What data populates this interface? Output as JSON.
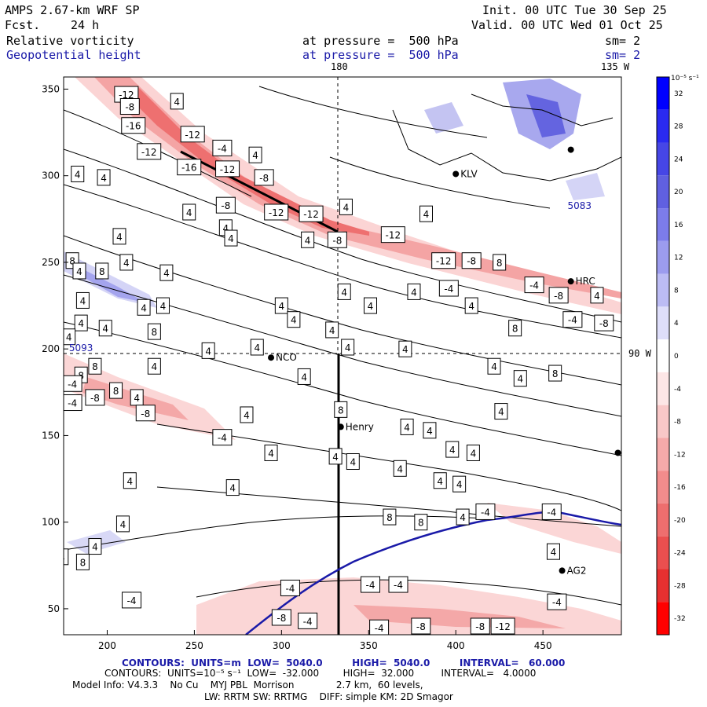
{
  "header": {
    "model": "AMPS 2.67-km WRF SP",
    "fcst_label": "Fcst.",
    "fcst_value": "24 h",
    "init": "Init. 00 UTC Tue 30 Sep 25",
    "valid": "Valid. 00 UTC Wed 01 Oct 25",
    "field1_name": "Relative vorticity",
    "field1_level": "at pressure =  500 hPa",
    "field1_sm": "sm= 2",
    "field2_name": "Geopotential height",
    "field2_level": "at pressure =  500 hPa",
    "field2_sm": "sm= 2",
    "top_left_marker": "180",
    "top_right_marker": "135 W",
    "right_marker": "90 W"
  },
  "axes": {
    "x_ticks": [
      "200",
      "250",
      "300",
      "350",
      "400",
      "450"
    ],
    "x_values": [
      200,
      250,
      300,
      350,
      400,
      450
    ],
    "x_range": [
      175,
      495
    ],
    "y_ticks": [
      "50",
      "100",
      "150",
      "200",
      "250",
      "300",
      "350"
    ],
    "y_values": [
      50,
      100,
      150,
      200,
      250,
      300,
      350
    ],
    "y_range": [
      35,
      357
    ]
  },
  "colorbar": {
    "unit": "10⁻⁵ s⁻¹",
    "labels": [
      "32",
      "28",
      "24",
      "20",
      "16",
      "12",
      "8",
      "4",
      "0",
      "-4",
      "-8",
      "-12",
      "-16",
      "-20",
      "-24",
      "-28",
      "-32"
    ],
    "colors": [
      "#0000ff",
      "#2a2af0",
      "#4646e6",
      "#6060e0",
      "#7c7cea",
      "#9c9cee",
      "#bcbcf4",
      "#dedefa",
      "#ffffff",
      "#fde6e6",
      "#f9c8c8",
      "#f6aaaa",
      "#f28c8c",
      "#ee6e6e",
      "#ea4f4f",
      "#e63030",
      "#ff0000"
    ]
  },
  "stations": [
    {
      "name": "KLV",
      "x": 400,
      "y": 301
    },
    {
      "name": "HRC",
      "x": 466,
      "y": 239
    },
    {
      "name": "NCO",
      "x": 294,
      "y": 195
    },
    {
      "name": "Henry",
      "x": 334,
      "y": 155
    },
    {
      "name": "AG2",
      "x": 461,
      "y": 72
    },
    {
      "name": "",
      "x": 466,
      "y": 315
    },
    {
      "name": "",
      "x": 493,
      "y": 140
    }
  ],
  "height_labels": [
    {
      "text": "5093",
      "x": 185,
      "y": 201
    },
    {
      "text": "5083",
      "x": 471,
      "y": 283
    }
  ],
  "contour_labels": [
    {
      "text": "-12",
      "x": 211,
      "y": 347
    },
    {
      "text": "-8",
      "x": 213,
      "y": 340
    },
    {
      "text": "4",
      "x": 240,
      "y": 343
    },
    {
      "text": "-16",
      "x": 215,
      "y": 329
    },
    {
      "text": "-12",
      "x": 224,
      "y": 314
    },
    {
      "text": "-12",
      "x": 249,
      "y": 324
    },
    {
      "text": "-4",
      "x": 266,
      "y": 316
    },
    {
      "text": "4",
      "x": 285,
      "y": 312
    },
    {
      "text": "-16",
      "x": 247,
      "y": 305
    },
    {
      "text": "-12",
      "x": 269,
      "y": 304
    },
    {
      "text": "-8",
      "x": 290,
      "y": 299
    },
    {
      "text": "4",
      "x": 183,
      "y": 301
    },
    {
      "text": "4",
      "x": 198,
      "y": 299
    },
    {
      "text": "-8",
      "x": 268,
      "y": 283
    },
    {
      "text": "-12",
      "x": 297,
      "y": 279
    },
    {
      "text": "-12",
      "x": 317,
      "y": 278
    },
    {
      "text": "4",
      "x": 337,
      "y": 282
    },
    {
      "text": "4",
      "x": 247,
      "y": 279
    },
    {
      "text": "4",
      "x": 383,
      "y": 278
    },
    {
      "text": "4",
      "x": 268,
      "y": 270
    },
    {
      "text": "-12",
      "x": 364,
      "y": 266
    },
    {
      "text": "4",
      "x": 207,
      "y": 265
    },
    {
      "text": "4",
      "x": 271,
      "y": 264
    },
    {
      "text": "4",
      "x": 315,
      "y": 263
    },
    {
      "text": "-8",
      "x": 332,
      "y": 263
    },
    {
      "text": "8",
      "x": 180,
      "y": 251
    },
    {
      "text": "-12",
      "x": 393,
      "y": 251
    },
    {
      "text": "-8",
      "x": 409,
      "y": 251
    },
    {
      "text": "8",
      "x": 425,
      "y": 250
    },
    {
      "text": "4",
      "x": 211,
      "y": 250
    },
    {
      "text": "4",
      "x": 184,
      "y": 245
    },
    {
      "text": "8",
      "x": 197,
      "y": 245
    },
    {
      "text": "4",
      "x": 234,
      "y": 244
    },
    {
      "text": "-4",
      "x": 445,
      "y": 237
    },
    {
      "text": "4",
      "x": 336,
      "y": 233
    },
    {
      "text": "4",
      "x": 376,
      "y": 233
    },
    {
      "text": "-4",
      "x": 396,
      "y": 235
    },
    {
      "text": "-8",
      "x": 459,
      "y": 231
    },
    {
      "text": "4",
      "x": 481,
      "y": 231
    },
    {
      "text": "4",
      "x": 186,
      "y": 228
    },
    {
      "text": "4",
      "x": 221,
      "y": 224
    },
    {
      "text": "4",
      "x": 232,
      "y": 225
    },
    {
      "text": "4",
      "x": 300,
      "y": 225
    },
    {
      "text": "4",
      "x": 351,
      "y": 225
    },
    {
      "text": "4",
      "x": 409,
      "y": 225
    },
    {
      "text": "4",
      "x": 307,
      "y": 217
    },
    {
      "text": "-4",
      "x": 467,
      "y": 217
    },
    {
      "text": "-8",
      "x": 485,
      "y": 215
    },
    {
      "text": "4",
      "x": 185,
      "y": 215
    },
    {
      "text": "4",
      "x": 199,
      "y": 212
    },
    {
      "text": "8",
      "x": 227,
      "y": 210
    },
    {
      "text": "4",
      "x": 329,
      "y": 211
    },
    {
      "text": "8",
      "x": 434,
      "y": 212
    },
    {
      "text": "4",
      "x": 178,
      "y": 207
    },
    {
      "text": "4",
      "x": 286,
      "y": 201
    },
    {
      "text": "4",
      "x": 258,
      "y": 199
    },
    {
      "text": "4",
      "x": 338,
      "y": 201
    },
    {
      "text": "4",
      "x": 371,
      "y": 200
    },
    {
      "text": "8",
      "x": 193,
      "y": 190
    },
    {
      "text": "4",
      "x": 227,
      "y": 190
    },
    {
      "text": "4",
      "x": 422,
      "y": 190
    },
    {
      "text": "8",
      "x": 185,
      "y": 185
    },
    {
      "text": "8",
      "x": 457,
      "y": 186
    },
    {
      "text": "4",
      "x": 313,
      "y": 184
    },
    {
      "text": "4",
      "x": 437,
      "y": 183
    },
    {
      "text": "-4",
      "x": 180,
      "y": 180
    },
    {
      "text": "8",
      "x": 205,
      "y": 176
    },
    {
      "text": "4",
      "x": 217,
      "y": 172
    },
    {
      "text": "-8",
      "x": 193,
      "y": 172
    },
    {
      "text": "-4",
      "x": 180,
      "y": 169
    },
    {
      "text": "8",
      "x": 334,
      "y": 165
    },
    {
      "text": "-8",
      "x": 222,
      "y": 163
    },
    {
      "text": "4",
      "x": 280,
      "y": 162
    },
    {
      "text": "4",
      "x": 426,
      "y": 164
    },
    {
      "text": "4",
      "x": 372,
      "y": 155
    },
    {
      "text": "4",
      "x": 385,
      "y": 153
    },
    {
      "text": "-4",
      "x": 266,
      "y": 149
    },
    {
      "text": "4",
      "x": 398,
      "y": 142
    },
    {
      "text": "4",
      "x": 410,
      "y": 140
    },
    {
      "text": "4",
      "x": 294,
      "y": 140
    },
    {
      "text": "4",
      "x": 331,
      "y": 138
    },
    {
      "text": "4",
      "x": 341,
      "y": 135
    },
    {
      "text": "4",
      "x": 368,
      "y": 131
    },
    {
      "text": "4",
      "x": 391,
      "y": 124
    },
    {
      "text": "4",
      "x": 402,
      "y": 122
    },
    {
      "text": "4",
      "x": 213,
      "y": 124
    },
    {
      "text": "4",
      "x": 272,
      "y": 120
    },
    {
      "text": "-4",
      "x": 417,
      "y": 106
    },
    {
      "text": "-4",
      "x": 455,
      "y": 106
    },
    {
      "text": "4",
      "x": 404,
      "y": 103
    },
    {
      "text": "8",
      "x": 362,
      "y": 103
    },
    {
      "text": "8",
      "x": 380,
      "y": 100
    },
    {
      "text": "4",
      "x": 209,
      "y": 99
    },
    {
      "text": "4",
      "x": 193,
      "y": 86
    },
    {
      "text": "4",
      "x": 174,
      "y": 80
    },
    {
      "text": "4",
      "x": 456,
      "y": 83
    },
    {
      "text": "8",
      "x": 186,
      "y": 77
    },
    {
      "text": "-4",
      "x": 305,
      "y": 62
    },
    {
      "text": "-4",
      "x": 351,
      "y": 64
    },
    {
      "text": "-4",
      "x": 367,
      "y": 64
    },
    {
      "text": "-4",
      "x": 214,
      "y": 55
    },
    {
      "text": "-4",
      "x": 458,
      "y": 54
    },
    {
      "text": "-8",
      "x": 300,
      "y": 45
    },
    {
      "text": "-4",
      "x": 315,
      "y": 43
    },
    {
      "text": "-4",
      "x": 356,
      "y": 39
    },
    {
      "text": "-8",
      "x": 380,
      "y": 40
    },
    {
      "text": "-8",
      "x": 414,
      "y": 40
    },
    {
      "text": "-12",
      "x": 427,
      "y": 40
    }
  ],
  "footer": {
    "contours_height": "CONTOURS:  UNITS=m  LOW=  5040.0         HIGH=  5040.0         INTERVAL=   60.000",
    "contours_vort": "CONTOURS:  UNITS=10⁻⁵ s⁻¹  LOW=  -32.000        HIGH=  32.000         INTERVAL=   4.0000",
    "model_info": "Model Info: V4.3.3    No Cu    MYJ PBL  Morrison              2.7 km,  60 levels,",
    "model_info2": "LW: RRTM SW: RRTMG    DIFF: simple KM: 2D Smagor"
  }
}
